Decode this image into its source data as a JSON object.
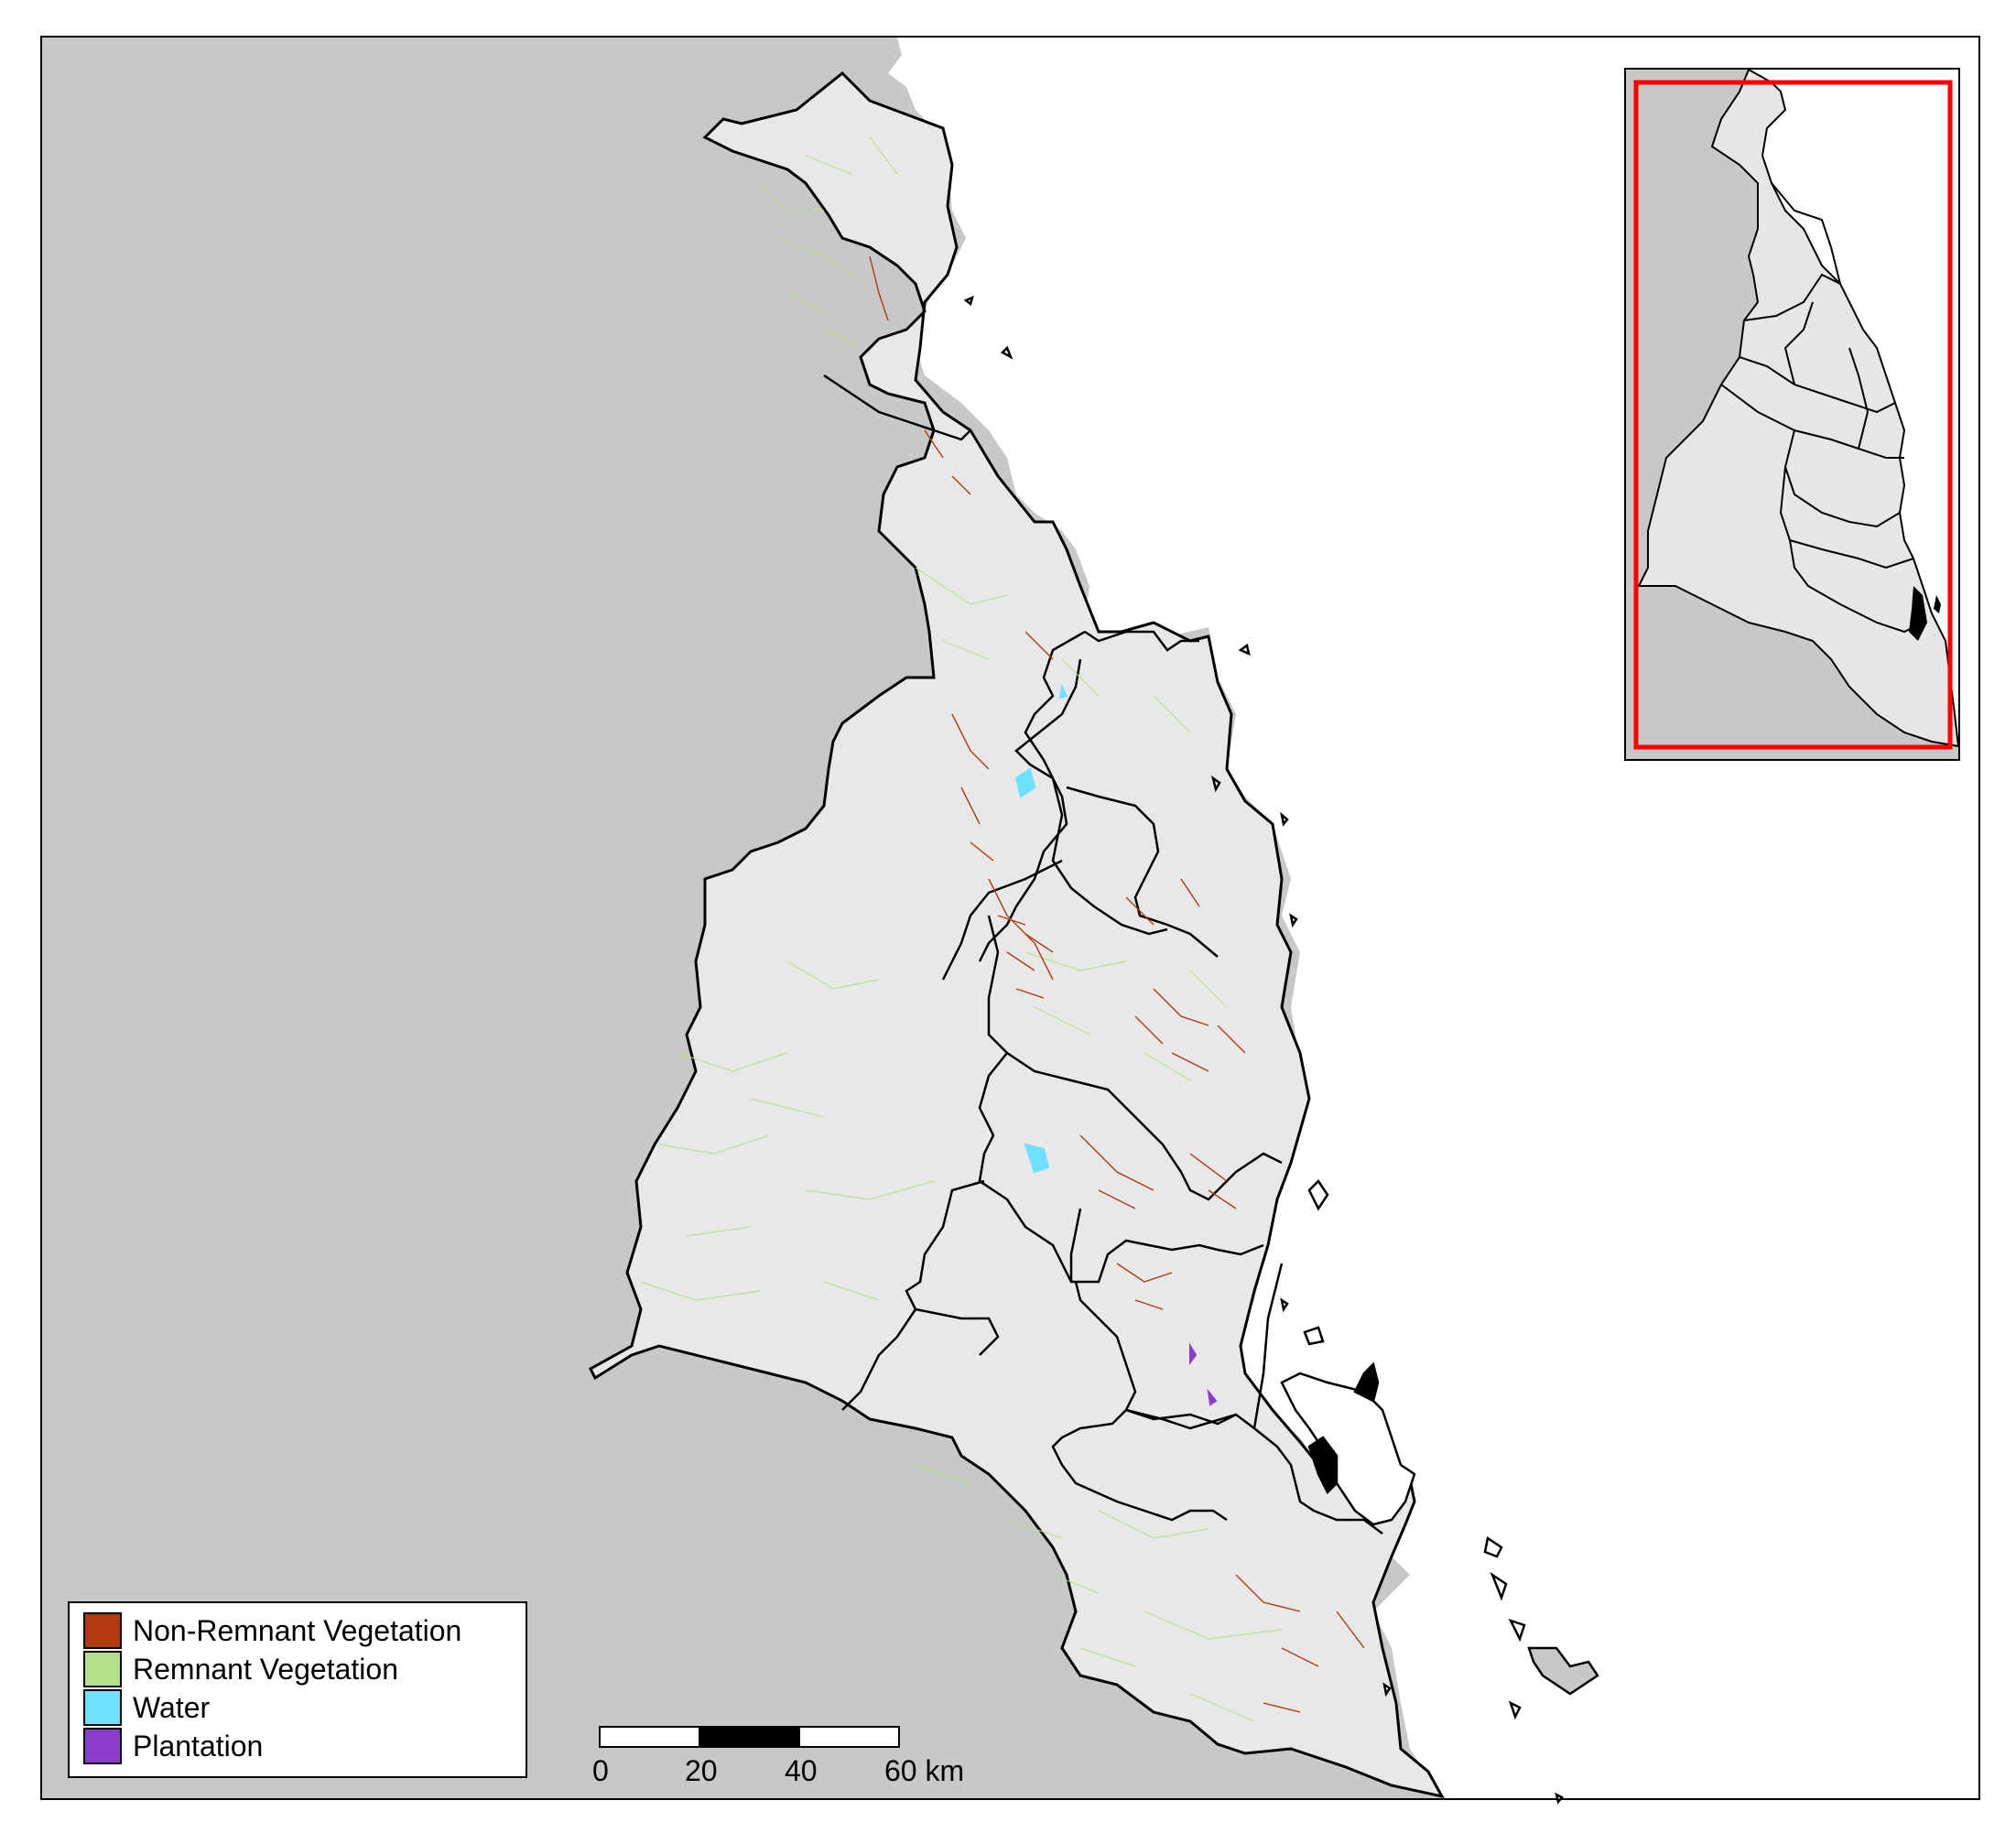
{
  "map": {
    "land_outside_color": "#c8c8c8",
    "ocean_color": "#ffffff",
    "catchment_fill_color": "#e8e8e8",
    "boundary_color": "#000000",
    "island_fill_color": "#c8c8c8"
  },
  "legend": {
    "items": [
      {
        "label": "Non-Remnant Vegetation",
        "color": "#b33a0c"
      },
      {
        "label": "Remnant Vegetation",
        "color": "#b5e08a"
      },
      {
        "label": "Water",
        "color": "#6fe0ff"
      },
      {
        "label": "Plantation",
        "color": "#8b3cc9"
      }
    ]
  },
  "scale_bar": {
    "ticks": [
      "0",
      "20",
      "40",
      "60 km"
    ],
    "segment_colors": [
      "#ffffff",
      "#000000",
      "#000000",
      "#ffffff"
    ]
  },
  "inset": {
    "extent_box_color": "#ff0000",
    "land_color": "#e6e6e6",
    "outside_color": "#c8c8c8"
  }
}
